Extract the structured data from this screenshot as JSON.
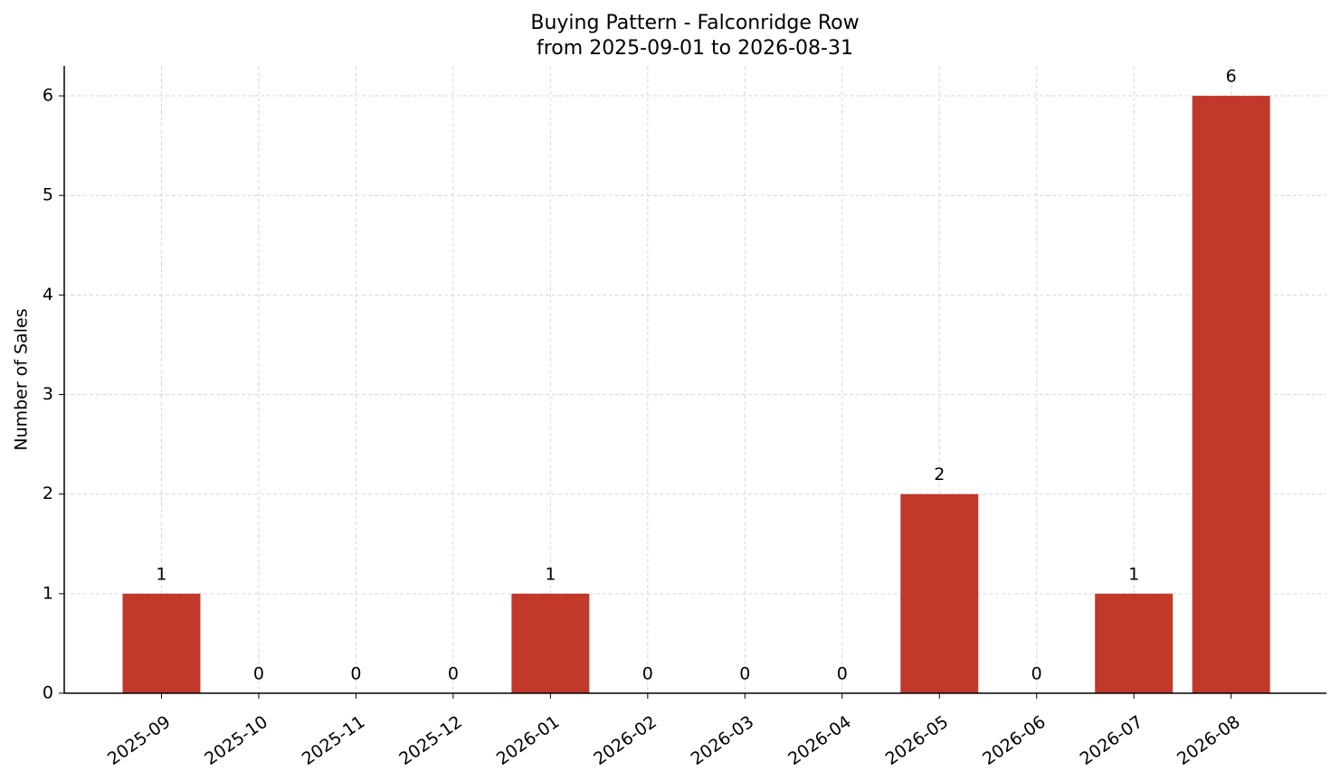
{
  "chart_data": {
    "type": "bar",
    "title": "Buying Pattern - Falconridge Row",
    "subtitle": "from 2025-09-01 to 2026-08-31",
    "y_label": "Number of Sales",
    "categories": [
      "2025-09",
      "2025-10",
      "2025-11",
      "2025-12",
      "2026-01",
      "2026-02",
      "2026-03",
      "2026-04",
      "2026-05",
      "2026-06",
      "2026-07",
      "2026-08"
    ],
    "values": [
      1,
      0,
      0,
      0,
      1,
      0,
      0,
      0,
      2,
      0,
      1,
      6
    ],
    "color": "#c0392b",
    "ylim": [
      0,
      6.3
    ],
    "yticks": [
      0,
      1,
      2,
      3,
      4,
      5,
      6
    ],
    "grid": true
  }
}
